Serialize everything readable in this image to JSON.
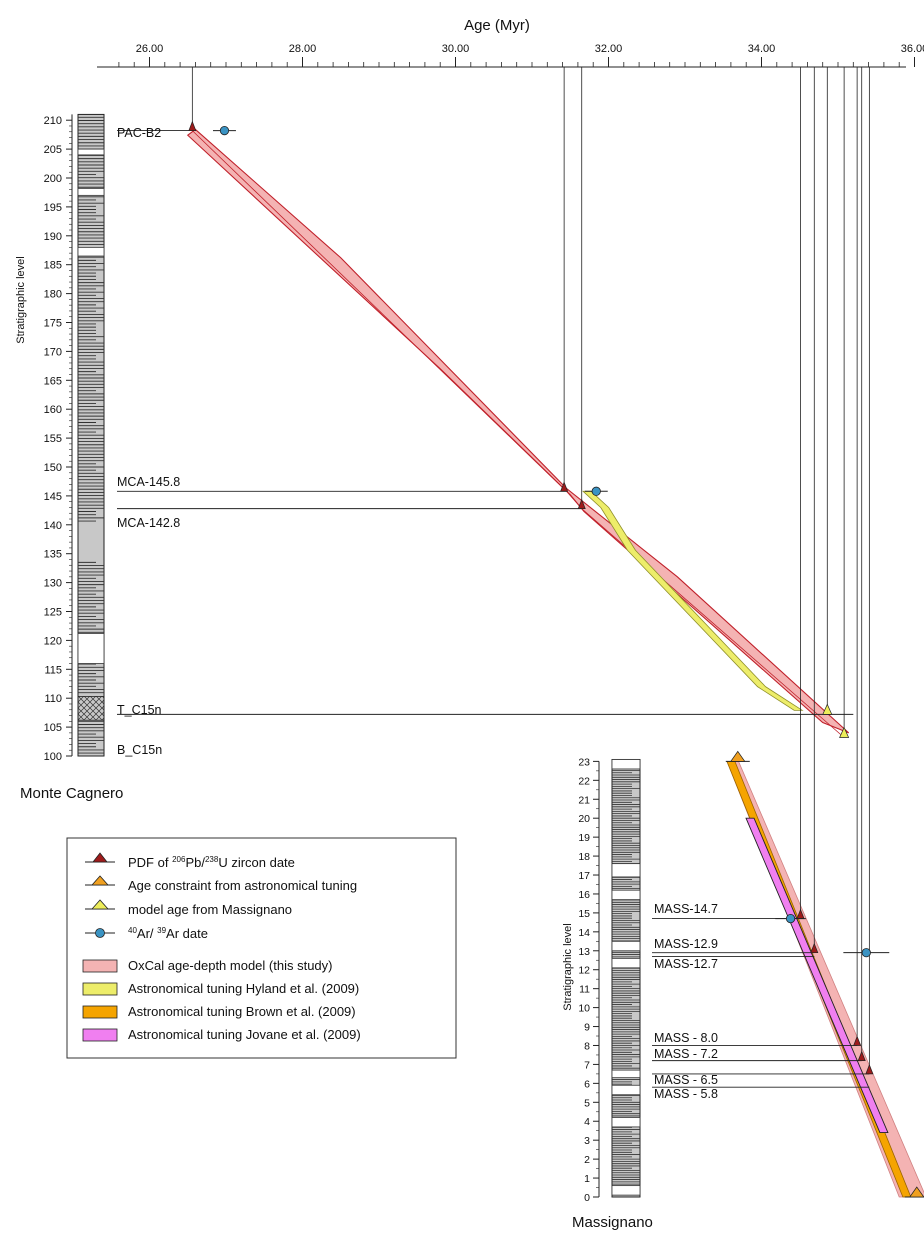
{
  "age_axis": {
    "title": "Age (Myr)",
    "ticks": [
      "26.00",
      "28.00",
      "30.00",
      "32.00",
      "34.00",
      "36.00"
    ]
  },
  "monte_cagnero": {
    "name": "Monte Cagnero",
    "ylabel": "Stratigraphic level",
    "ticks": [
      "100",
      "105",
      "110",
      "115",
      "120",
      "125",
      "130",
      "135",
      "140",
      "145",
      "150",
      "155",
      "160",
      "165",
      "170",
      "175",
      "180",
      "185",
      "190",
      "195",
      "200",
      "205",
      "210"
    ],
    "samples": [
      "PAC-B2",
      "MCA-145.8",
      "MCA-142.8",
      "T_C15n",
      "B_C15n"
    ]
  },
  "massignano": {
    "name": "Massignano",
    "ylabel": "Stratigraphic level",
    "ticks": [
      "0",
      "1",
      "2",
      "3",
      "4",
      "5",
      "6",
      "7",
      "8",
      "9",
      "10",
      "11",
      "12",
      "13",
      "14",
      "15",
      "16",
      "17",
      "18",
      "19",
      "20",
      "21",
      "22",
      "23"
    ],
    "samples": [
      "MASS-14.7",
      "MASS-12.9",
      "MASS-12.7",
      "MASS - 8.0",
      "MASS - 7.2",
      "MASS - 6.5",
      "MASS - 5.8"
    ]
  },
  "legend": {
    "items": [
      {
        "pre": "PDF of ",
        "sup1": "206",
        "mid": "Pb/",
        "sup2": "238",
        "post": "U zircon date",
        "color": "#9e1b1b"
      },
      {
        "pre": "Age constraint from astronomical tuning",
        "color": "#f0a020"
      },
      {
        "pre": "model age from Massignano",
        "color": "#eded5a"
      },
      {
        "pre": "",
        "sup1": "40",
        "mid": "Ar/ ",
        "sup2": "39",
        "post": "Ar date",
        "color": "#3a93c3"
      },
      {
        "pre": "OxCal age-depth model (this study)",
        "color": "#f4b3b3"
      },
      {
        "pre": "Astronomical tuning Hyland et al. (2009)",
        "color": "#eded6a"
      },
      {
        "pre": "Astronomical tuning Brown et al. (2009)",
        "color": "#f5a400"
      },
      {
        "pre": "Astronomical tuning Jovane et al. (2009)",
        "color": "#f07ff0"
      }
    ]
  },
  "chart_data": [
    {
      "type": "scatter",
      "title": "Monte Cagnero",
      "xlabel": "Age (Myr)",
      "ylabel": "Stratigraphic level",
      "xlim": [
        25.6,
        36.2
      ],
      "ylim": [
        100,
        211
      ],
      "u_pb_dates": [
        {
          "sample": "PAC-B2",
          "age": 26.56,
          "level": 208.2
        },
        {
          "sample": "MCA-145.8",
          "age": 31.42,
          "level": 145.8
        },
        {
          "sample": "MCA-142.8",
          "age": 31.65,
          "level": 142.8
        }
      ],
      "ar_ar_dates": [
        {
          "age": 26.98,
          "level": 208.2,
          "err": 0.15
        },
        {
          "age": 31.84,
          "level": 145.8,
          "err": 0.15
        }
      ],
      "model_age_from_massignano": [
        {
          "age": 34.86,
          "level": 107.2
        },
        {
          "age": 35.08,
          "level": 103.2
        }
      ],
      "oxcal_model": {
        "center": [
          [
            26.56,
            208.2
          ],
          [
            31.45,
            145.8
          ],
          [
            31.65,
            142.8
          ],
          [
            35.08,
            103.2
          ]
        ],
        "upper": [
          [
            26.6,
            208.4
          ],
          [
            28.5,
            186.2
          ],
          [
            31.45,
            146.3
          ],
          [
            32.9,
            131.0
          ],
          [
            35.14,
            104.0
          ]
        ],
        "lower": [
          [
            26.5,
            207.4
          ],
          [
            29.8,
            167.0
          ],
          [
            31.5,
            145.2
          ],
          [
            31.68,
            142.3
          ],
          [
            34.8,
            105.8
          ]
        ]
      },
      "hyland_2009": [
        [
          31.72,
          145.8
        ],
        [
          31.95,
          143.0
        ],
        [
          32.3,
          135.6
        ],
        [
          34.0,
          112.0
        ],
        [
          34.48,
          107.9
        ]
      ],
      "marker_levels": {
        "PAC-B2": 208.2,
        "MCA-145.8": 145.8,
        "MCA-142.8": 142.8,
        "T_C15n": 107.2,
        "B_C15n": 102.6
      }
    },
    {
      "type": "scatter",
      "title": "Massignano",
      "xlabel": "Age (Myr)",
      "ylabel": "Stratigraphic level",
      "xlim": [
        25.6,
        36.2
      ],
      "ylim": [
        0,
        23
      ],
      "u_pb_dates": [
        {
          "sample": "MASS-14.7",
          "age": 34.51,
          "level": 14.7
        },
        {
          "sample": "MASS-12.9",
          "age": 34.69,
          "level": 12.9
        },
        {
          "sample": "MASS - 8.0",
          "age": 35.25,
          "level": 8.0
        },
        {
          "sample": "MASS - 7.2",
          "age": 35.31,
          "level": 7.2
        },
        {
          "sample": "MASS - 6.5",
          "age": 35.41,
          "level": 6.5
        }
      ],
      "ar_ar_dates": [
        {
          "age": 34.38,
          "level": 14.7,
          "err": 0.2
        },
        {
          "age": 35.37,
          "level": 12.9,
          "err": 0.3
        }
      ],
      "astronomical_constraints": [
        {
          "age": 33.69,
          "level": 23.0
        },
        {
          "age": 36.03,
          "level": 0.0
        }
      ],
      "oxcal_model": {
        "upper": [
          [
            33.7,
            23.0
          ],
          [
            36.15,
            0.0
          ]
        ],
        "lower": [
          [
            33.55,
            23.0
          ],
          [
            35.8,
            0.0
          ]
        ]
      },
      "brown_2009": [
        [
          33.6,
          23.0
        ],
        [
          35.9,
          0.0
        ]
      ],
      "jovane_2009": [
        [
          33.85,
          20.0
        ],
        [
          35.6,
          3.4
        ]
      ],
      "marker_levels": [
        14.7,
        12.9,
        12.7,
        8.0,
        7.2,
        6.5,
        5.8
      ]
    }
  ]
}
